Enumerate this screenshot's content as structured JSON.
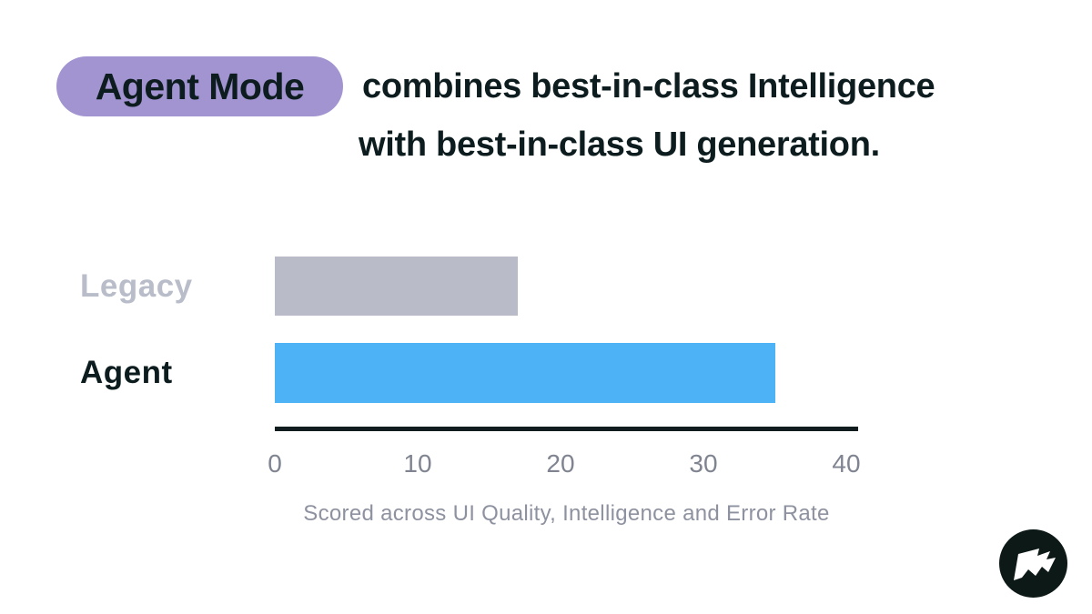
{
  "header": {
    "highlight_label": "Agent Mode",
    "highlight_bg": "#a294d1",
    "text_color": "#0d1c1e",
    "title_line1": "combines best-in-class Intelligence",
    "title_line2": "with best-in-class UI generation."
  },
  "chart_data": {
    "type": "bar",
    "orientation": "horizontal",
    "categories": [
      "Legacy",
      "Agent"
    ],
    "values": [
      17,
      35
    ],
    "bar_colors": [
      "#b9bcc8",
      "#4db2f6"
    ],
    "label_colors": [
      "#b9bdc9",
      "#0d1c1e"
    ],
    "xlim": [
      0,
      40
    ],
    "ticks": [
      "0",
      "10",
      "20",
      "30",
      "40"
    ],
    "tick_color": "#7f8490",
    "axis_line_color": "#101c1e",
    "grid": false,
    "legend": false,
    "title": "",
    "xlabel": "",
    "ylabel": "",
    "caption": "Scored across UI Quality, Intelligence and Error Rate",
    "caption_color": "#8e92a0"
  },
  "logo": {
    "icon": "flag-icon",
    "bg": "#0c1916",
    "fg": "#ffffff"
  }
}
